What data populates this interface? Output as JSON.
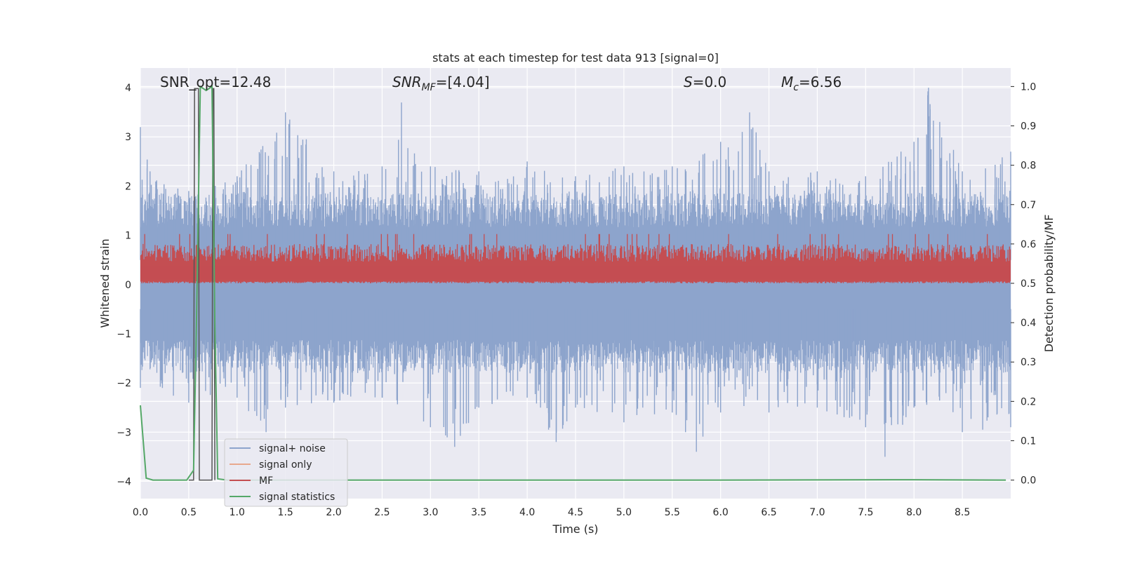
{
  "chart_data": {
    "type": "line",
    "title": "stats at each timestep for test data 913 [signal=0]",
    "xlabel": "Time (s)",
    "ylabel": "Whitened strain",
    "y2label": "Detection probability/MF",
    "xlim": [
      0.0,
      9.0
    ],
    "ylim": [
      -4.35,
      4.4
    ],
    "y2lim": [
      -0.047,
      1.047
    ],
    "xticks": [
      "0.0",
      "0.5",
      "1.0",
      "1.5",
      "2.0",
      "2.5",
      "3.0",
      "3.5",
      "4.0",
      "4.5",
      "5.0",
      "5.5",
      "6.0",
      "6.5",
      "7.0",
      "7.5",
      "8.0",
      "8.5"
    ],
    "yticks": [
      "4",
      "3",
      "2",
      "1",
      "0",
      "−1",
      "−2",
      "−3",
      "−4"
    ],
    "y2ticks": [
      "1.0",
      "0.9",
      "0.8",
      "0.7",
      "0.6",
      "0.5",
      "0.4",
      "0.3",
      "0.2",
      "0.1",
      "0.0"
    ],
    "grid": true,
    "legend_position": "lower-left",
    "annotations": {
      "snr_opt": "SNR_opt=12.48",
      "snr_mf_main": "SNR",
      "snr_mf_sub": "MF",
      "snr_mf_value": "=[4.04]",
      "s_main": "S",
      "s_value": "=0.0",
      "mc_main": "M",
      "mc_sub": "c",
      "mc_value": "=6.56"
    },
    "series": [
      {
        "name": "signal+ noise",
        "color": "#8da4cc",
        "kind": "noise",
        "envelope_upper": [
          [
            0.0,
            3.2
          ],
          [
            0.1,
            2.3
          ],
          [
            0.5,
            1.9
          ],
          [
            1.0,
            2.2
          ],
          [
            1.5,
            3.5
          ],
          [
            2.0,
            2.3
          ],
          [
            2.5,
            2.4
          ],
          [
            2.7,
            3.7
          ],
          [
            3.0,
            2.4
          ],
          [
            3.5,
            2.3
          ],
          [
            4.0,
            2.5
          ],
          [
            4.5,
            2.2
          ],
          [
            5.0,
            2.4
          ],
          [
            5.5,
            2.4
          ],
          [
            6.0,
            2.9
          ],
          [
            6.3,
            3.5
          ],
          [
            6.5,
            2.3
          ],
          [
            7.0,
            2.3
          ],
          [
            7.5,
            2.2
          ],
          [
            8.0,
            2.9
          ],
          [
            8.15,
            4.0
          ],
          [
            8.5,
            2.3
          ],
          [
            9.0,
            2.7
          ]
        ],
        "envelope_lower": [
          [
            0.0,
            -2.1
          ],
          [
            0.5,
            -2.4
          ],
          [
            1.0,
            -2.3
          ],
          [
            1.3,
            -3.0
          ],
          [
            1.5,
            -2.5
          ],
          [
            2.0,
            -2.4
          ],
          [
            2.5,
            -2.3
          ],
          [
            3.0,
            -2.9
          ],
          [
            3.25,
            -3.3
          ],
          [
            3.5,
            -2.5
          ],
          [
            4.0,
            -2.3
          ],
          [
            4.3,
            -3.2
          ],
          [
            4.5,
            -2.5
          ],
          [
            5.0,
            -2.8
          ],
          [
            5.5,
            -2.6
          ],
          [
            5.75,
            -3.4
          ],
          [
            6.0,
            -2.6
          ],
          [
            6.5,
            -2.6
          ],
          [
            7.0,
            -2.5
          ],
          [
            7.5,
            -2.9
          ],
          [
            7.7,
            -3.5
          ],
          [
            8.0,
            -2.5
          ],
          [
            8.5,
            -3.0
          ],
          [
            9.0,
            -2.9
          ]
        ],
        "dense_upper": 1.55,
        "dense_lower": -1.5
      },
      {
        "name": "signal only",
        "color": "#e8a98d",
        "kind": "line",
        "points": []
      },
      {
        "name": "MF",
        "color": "#c44e52",
        "kind": "band",
        "axis": "right",
        "band_low": 0.5,
        "band_high": 0.6,
        "peak_high": 0.625,
        "spike": [
          [
            0.5,
            0.0
          ],
          [
            0.55,
            0.0
          ],
          [
            0.56,
            0.995
          ],
          [
            0.6,
            0.995
          ],
          [
            0.61,
            0.0
          ],
          [
            0.74,
            0.0
          ],
          [
            0.75,
            0.995
          ],
          [
            0.76,
            0.995
          ],
          [
            0.77,
            0.0
          ]
        ]
      },
      {
        "name": "signal statistics",
        "color": "#55a868",
        "kind": "line",
        "axis": "right",
        "points": [
          [
            0.0,
            0.19
          ],
          [
            0.06,
            0.005
          ],
          [
            0.13,
            0.0
          ],
          [
            0.48,
            0.0
          ],
          [
            0.55,
            0.025
          ],
          [
            0.58,
            0.4
          ],
          [
            0.62,
            1.0
          ],
          [
            0.68,
            0.99
          ],
          [
            0.74,
            1.0
          ],
          [
            0.77,
            0.4
          ],
          [
            0.8,
            0.003
          ],
          [
            0.9,
            0.0
          ],
          [
            3.0,
            0.0
          ],
          [
            6.0,
            0.0
          ],
          [
            8.0,
            0.001
          ],
          [
            8.95,
            0.0
          ]
        ]
      }
    ]
  }
}
